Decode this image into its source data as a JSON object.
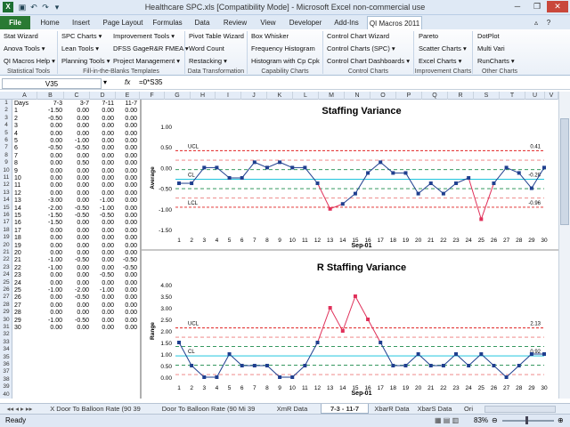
{
  "window": {
    "title": "Healthcare SPC.xls  [Compatibility Mode]  -  Microsoft Excel non-commercial use"
  },
  "tabs": [
    "File",
    "Home",
    "Insert",
    "Page Layout",
    "Formulas",
    "Data",
    "Review",
    "View",
    "Developer",
    "Add-Ins",
    "QI Macros 2011"
  ],
  "ribbon": {
    "buttons": [
      {
        "label": "Stat Wizard"
      },
      {
        "label": "Anova Tools ▾"
      },
      {
        "label": "QI Macros Help ▾"
      },
      {
        "label": "SPC Charts ▾"
      },
      {
        "label": "Lean Tools ▾"
      },
      {
        "label": "Planning Tools ▾"
      },
      {
        "label": "Improvement Tools ▾"
      },
      {
        "label": "DFSS GageR&R FMEA ▾"
      },
      {
        "label": "Project Management ▾"
      },
      {
        "label": "Pivot Table Wizard"
      },
      {
        "label": "Word Count"
      },
      {
        "label": "Restacking ▾"
      },
      {
        "label": "Box Whisker"
      },
      {
        "label": "Frequency Histogram"
      },
      {
        "label": "Histogram with Cp Cpk"
      },
      {
        "label": "Control Chart Wizard"
      },
      {
        "label": "Control Charts (SPC) ▾"
      },
      {
        "label": "Control Chart Dashboards ▾"
      },
      {
        "label": "Pareto"
      },
      {
        "label": "Scatter Charts ▾"
      },
      {
        "label": "Excel Charts ▾"
      },
      {
        "label": "DotPlot"
      },
      {
        "label": "Multi Vari"
      },
      {
        "label": "RunCharts ▾"
      }
    ],
    "groups": [
      "Statistical Tools",
      "Fill-in-the-Blanks Templates",
      "Data Transformation",
      "Capability Charts",
      "Control Charts",
      "Improvement Charts",
      "Other Charts"
    ]
  },
  "formula": {
    "name_box": "V35",
    "fx": "fx",
    "value": "=0*S35"
  },
  "columns": [
    "A",
    "B",
    "C",
    "D",
    "E",
    "F",
    "G",
    "H",
    "I",
    "J",
    "K",
    "L",
    "M",
    "N",
    "O",
    "P",
    "Q",
    "R",
    "S",
    "T",
    "U",
    "V"
  ],
  "sheet": {
    "headers": [
      "Days",
      "7-3",
      "3-7",
      "7-11",
      "11-7"
    ],
    "rows": [
      [
        "1",
        "-1.50",
        "0.00",
        "0.00",
        "0.00"
      ],
      [
        "2",
        "-0.50",
        "0.00",
        "0.00",
        "0.00"
      ],
      [
        "3",
        "0.00",
        "0.00",
        "0.00",
        "0.00"
      ],
      [
        "4",
        "0.00",
        "0.00",
        "0.00",
        "0.00"
      ],
      [
        "5",
        "0.00",
        "-1.00",
        "0.00",
        "0.00"
      ],
      [
        "6",
        "-0.50",
        "-0.50",
        "0.00",
        "0.00"
      ],
      [
        "7",
        "0.00",
        "0.00",
        "0.00",
        "0.00"
      ],
      [
        "8",
        "0.00",
        "0.50",
        "0.00",
        "0.00"
      ],
      [
        "9",
        "0.00",
        "0.00",
        "0.00",
        "0.00"
      ],
      [
        "10",
        "0.00",
        "0.00",
        "0.00",
        "0.00"
      ],
      [
        "11",
        "0.00",
        "0.00",
        "0.00",
        "0.00"
      ],
      [
        "12",
        "0.00",
        "0.00",
        "0.00",
        "0.00"
      ],
      [
        "13",
        "-3.00",
        "0.00",
        "-1.00",
        "0.00"
      ],
      [
        "14",
        "-2.00",
        "-0.50",
        "-1.00",
        "0.00"
      ],
      [
        "15",
        "-1.50",
        "-0.50",
        "-0.50",
        "0.00"
      ],
      [
        "16",
        "-1.50",
        "0.00",
        "0.00",
        "0.00"
      ],
      [
        "17",
        "0.00",
        "0.00",
        "0.00",
        "0.00"
      ],
      [
        "18",
        "0.00",
        "0.00",
        "0.00",
        "0.00"
      ],
      [
        "19",
        "0.00",
        "0.00",
        "0.00",
        "0.00"
      ],
      [
        "20",
        "0.00",
        "0.00",
        "0.00",
        "0.00"
      ],
      [
        "21",
        "-1.00",
        "-0.50",
        "0.00",
        "-0.50"
      ],
      [
        "22",
        "-1.00",
        "0.00",
        "0.00",
        "-0.50"
      ],
      [
        "23",
        "0.00",
        "0.00",
        "-0.50",
        "0.00"
      ],
      [
        "24",
        "0.00",
        "0.00",
        "0.00",
        "0.00"
      ],
      [
        "25",
        "-1.00",
        "-2.00",
        "-1.00",
        "0.00"
      ],
      [
        "26",
        "0.00",
        "-0.50",
        "0.00",
        "0.00"
      ],
      [
        "27",
        "0.00",
        "0.00",
        "0.00",
        "0.00"
      ],
      [
        "28",
        "0.00",
        "0.00",
        "0.00",
        "0.00"
      ],
      [
        "29",
        "-1.00",
        "-0.50",
        "0.00",
        "0.00"
      ],
      [
        "30",
        "0.00",
        "0.00",
        "0.00",
        "0.00"
      ]
    ]
  },
  "colors": {
    "title_bg": "#dfe9f5",
    "file_tab": "#2a7a33",
    "series": "#1f3f8f",
    "out_of_control": "#e0305a",
    "limit": "#e02020",
    "center": "#00bcd8",
    "sigma": "#1a8a4a"
  },
  "chart_data": [
    {
      "type": "line",
      "title": "Staffing Variance",
      "xlabel": "Sep-01",
      "ylabel": "Average",
      "x": [
        1,
        2,
        3,
        4,
        5,
        6,
        7,
        8,
        9,
        10,
        11,
        12,
        13,
        14,
        15,
        16,
        17,
        18,
        19,
        20,
        21,
        22,
        23,
        24,
        25,
        26,
        27,
        28,
        29,
        30
      ],
      "values": [
        -0.38,
        -0.38,
        0.0,
        0.0,
        -0.25,
        -0.25,
        0.13,
        0.0,
        0.13,
        0.0,
        0.0,
        -0.38,
        -1.0,
        -0.88,
        -0.63,
        -0.13,
        0.13,
        -0.13,
        -0.13,
        -0.63,
        -0.38,
        -0.63,
        -0.38,
        -0.25,
        -1.25,
        -0.38,
        0.0,
        -0.13,
        -0.5,
        0.0
      ],
      "out_of_control": [
        13,
        25
      ],
      "ylim": [
        -1.5,
        1.0
      ],
      "yticks": [
        "1.00",
        "0.50",
        "0.00",
        "-0.50",
        "-1.00",
        "-1.50"
      ],
      "limits": {
        "ucl": 0.41,
        "cl": -0.28,
        "lcl": -0.96
      },
      "labels": {
        "ucl": "UCL",
        "cl": "CL",
        "lcl": "LCL",
        "ucl_val": "0.41",
        "cl_val": "-0.28",
        "lcl_val": "-0.96"
      }
    },
    {
      "type": "line",
      "title": "R Staffing Variance",
      "xlabel": "Sep-01",
      "ylabel": "Range",
      "x": [
        1,
        2,
        3,
        4,
        5,
        6,
        7,
        8,
        9,
        10,
        11,
        12,
        13,
        14,
        15,
        16,
        17,
        18,
        19,
        20,
        21,
        22,
        23,
        24,
        25,
        26,
        27,
        28,
        29,
        30
      ],
      "values": [
        1.5,
        0.5,
        0.0,
        0.0,
        1.0,
        0.5,
        0.5,
        0.5,
        0.0,
        0.0,
        0.5,
        1.5,
        3.0,
        2.0,
        3.5,
        2.5,
        1.5,
        0.5,
        0.5,
        1.0,
        0.5,
        0.5,
        1.0,
        0.5,
        1.0,
        0.5,
        0.0,
        0.5,
        1.0,
        1.0
      ],
      "out_of_control": [
        13,
        14,
        15,
        16
      ],
      "ylim": [
        0,
        4.0
      ],
      "yticks": [
        "4.00",
        "3.50",
        "3.00",
        "2.50",
        "2.00",
        "1.50",
        "1.00",
        "0.50",
        "0.00"
      ],
      "limits": {
        "ucl": 2.13,
        "cl": 0.92,
        "lcl": 0.0
      },
      "labels": {
        "ucl": "UCL",
        "cl": "CL",
        "lcl": "",
        "ucl_val": "2.13",
        "cl_val": "0.92",
        "lcl_val": ""
      }
    }
  ],
  "sheet_tabs": [
    "X Door To Balloon Rate  (90 39",
    "Door To Balloon Rate  (90 Mi 39",
    "XmR Data",
    "7-3 - 11-7",
    "XbarR Data",
    "XbarS Data",
    "Ori"
  ],
  "active_sheet_tab": "7-3 - 11-7",
  "status": {
    "ready": "Ready",
    "zoom": "83%"
  }
}
